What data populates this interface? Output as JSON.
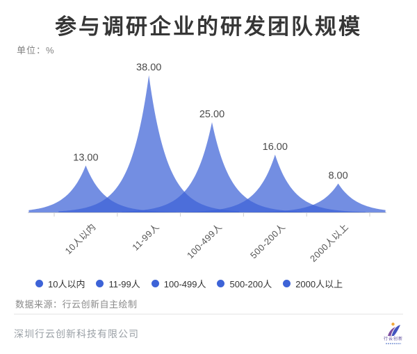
{
  "header": {
    "title": "参与调研企业的研发团队规模",
    "unit_label": "单位：%"
  },
  "chart_data": {
    "type": "area",
    "variant": "sharp-peak-spikes",
    "title": "参与调研企业的研发团队规模",
    "unit": "%",
    "categories": [
      "10人以内",
      "11-99人",
      "100-499人",
      "500-200人",
      "2000人以上"
    ],
    "values": [
      13,
      38,
      25,
      16,
      8
    ],
    "value_labels": [
      "13.00",
      "38.00",
      "25.00",
      "16.00",
      "8.00"
    ],
    "ylim": [
      0,
      40
    ],
    "grid": false,
    "legend_position": "bottom",
    "series_color": "#3D63D7",
    "fill_opacity": 0.72,
    "axis_color": "#cfcfcf",
    "value_label_color": "#4a4a4a"
  },
  "legend": {
    "dot_color": "#3D63D7",
    "items": [
      {
        "label": "10人以内"
      },
      {
        "label": "11-99人"
      },
      {
        "label": "100-499人"
      },
      {
        "label": "500-200人"
      },
      {
        "label": "2000人以上"
      }
    ]
  },
  "source": {
    "text": "数据来源：行云创新自主绘制"
  },
  "footer": {
    "company": "深圳行云创新科技有限公司",
    "logo_text": "行云创新"
  }
}
